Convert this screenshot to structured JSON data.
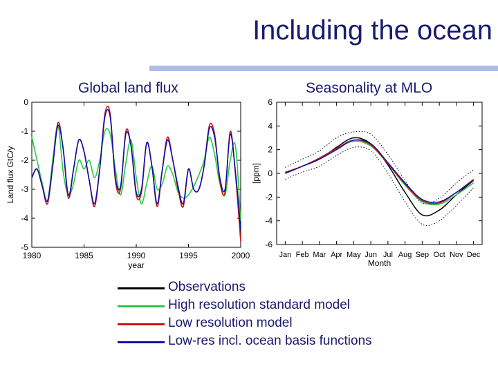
{
  "slide": {
    "title": "Including the ocean"
  },
  "colors": {
    "observations": "#000000",
    "high_res": "#22cc44",
    "low_res": "#cc1111",
    "low_res_ocean": "#1111aa",
    "title_text": "#1a1a6e",
    "accent_rule": "#aebde6"
  },
  "legend": [
    {
      "label": "Observations",
      "color_key": "observations"
    },
    {
      "label": "High resolution standard model",
      "color_key": "high_res"
    },
    {
      "label": "Low resolution model",
      "color_key": "low_res"
    },
    {
      "label": "Low-res incl. ocean basis functions",
      "color_key": "low_res_ocean"
    }
  ],
  "chart_data": [
    {
      "type": "line",
      "title": "Global land flux",
      "xlabel": "year",
      "ylabel": "Land flux GtC/y",
      "xlim": [
        1980,
        2000
      ],
      "ylim": [
        -5,
        0
      ],
      "xticks": [
        "1980",
        "1985",
        "1990",
        "1995",
        "2000"
      ],
      "yticks": [
        "0",
        "-1",
        "-2",
        "-3",
        "-4",
        "-5"
      ],
      "x": [
        1980.0,
        1980.5,
        1981.0,
        1981.5,
        1982.0,
        1982.5,
        1983.0,
        1983.5,
        1984.0,
        1984.5,
        1985.0,
        1985.5,
        1986.0,
        1986.5,
        1987.0,
        1987.5,
        1988.0,
        1988.5,
        1989.0,
        1989.5,
        1990.0,
        1990.5,
        1991.0,
        1991.5,
        1992.0,
        1992.5,
        1993.0,
        1993.5,
        1994.0,
        1994.5,
        1995.0,
        1995.5,
        1996.0,
        1996.5,
        1997.0,
        1997.5,
        1998.0,
        1998.5,
        1999.0,
        1999.5,
        2000.0
      ],
      "series": [
        {
          "name": "Low resolution model",
          "color_key": "low_res",
          "values": [
            -2.6,
            -2.3,
            -2.9,
            -3.5,
            -2.2,
            -0.7,
            -1.6,
            -3.3,
            -2.3,
            -1.3,
            -1.7,
            -2.7,
            -3.6,
            -2.3,
            -0.4,
            -0.4,
            -2.7,
            -3.0,
            -1.0,
            -1.5,
            -3.2,
            -3.1,
            -1.4,
            -2.2,
            -3.6,
            -2.3,
            -1.2,
            -2.0,
            -3.0,
            -3.6,
            -2.3,
            -3.0,
            -3.0,
            -2.2,
            -0.8,
            -1.1,
            -2.7,
            -3.1,
            -1.0,
            -2.5,
            -4.8
          ]
        },
        {
          "name": "Low-res incl. ocean basis functions",
          "color_key": "low_res_ocean",
          "values": [
            -2.6,
            -2.3,
            -2.9,
            -3.4,
            -2.2,
            -0.8,
            -1.6,
            -3.2,
            -2.3,
            -1.3,
            -1.7,
            -2.7,
            -3.5,
            -2.3,
            -0.5,
            -0.5,
            -2.6,
            -2.9,
            -1.1,
            -1.5,
            -3.1,
            -3.0,
            -1.4,
            -2.2,
            -3.5,
            -2.3,
            -1.3,
            -2.0,
            -2.9,
            -3.5,
            -2.3,
            -3.0,
            -3.0,
            -2.2,
            -0.9,
            -1.2,
            -2.6,
            -3.0,
            -1.1,
            -2.4,
            -4.4
          ]
        },
        {
          "name": "High resolution standard model",
          "color_key": "high_res",
          "values": [
            -1.2,
            -2.0,
            -2.8,
            -3.4,
            -2.0,
            -0.8,
            -2.4,
            -3.2,
            -2.8,
            -2.0,
            -2.3,
            -2.0,
            -2.6,
            -2.0,
            -1.0,
            -1.1,
            -2.3,
            -3.2,
            -2.1,
            -1.3,
            -2.6,
            -3.5,
            -2.8,
            -2.2,
            -3.0,
            -2.8,
            -2.2,
            -2.5,
            -3.1,
            -3.3,
            -3.2,
            -2.9,
            -2.5,
            -2.0,
            -1.2,
            -1.8,
            -2.8,
            -3.2,
            -2.0,
            -1.5,
            -4.1
          ]
        }
      ]
    },
    {
      "type": "line",
      "title": "Seasonality at MLO",
      "xlabel": "Month",
      "ylabel": "[ppm]",
      "ylim": [
        -6,
        6
      ],
      "categories": [
        "Jan",
        "Feb",
        "Mar",
        "Apr",
        "May",
        "Jun",
        "Jul",
        "Aug",
        "Sep",
        "Oct",
        "Nov",
        "Dec"
      ],
      "yticks": [
        "6",
        "4",
        "2",
        "0",
        "-2",
        "-4",
        "-6"
      ],
      "series": [
        {
          "name": "Observations",
          "color_key": "observations",
          "values": [
            0.0,
            0.6,
            1.2,
            2.2,
            3.0,
            2.5,
            0.7,
            -1.6,
            -3.5,
            -3.1,
            -1.8,
            -0.6
          ]
        },
        {
          "name": "High resolution standard model",
          "color_key": "high_res",
          "values": [
            0.1,
            0.6,
            1.3,
            2.1,
            2.7,
            2.3,
            0.8,
            -1.0,
            -2.4,
            -2.6,
            -1.8,
            -0.8
          ]
        },
        {
          "name": "Low resolution model",
          "color_key": "low_res",
          "values": [
            0.1,
            0.6,
            1.3,
            2.1,
            2.8,
            2.4,
            0.8,
            -0.9,
            -2.3,
            -2.5,
            -1.6,
            -0.5
          ]
        },
        {
          "name": "Low-res incl. ocean basis functions",
          "color_key": "low_res_ocean",
          "values": [
            0.0,
            0.6,
            1.2,
            2.0,
            2.8,
            2.5,
            0.9,
            -0.8,
            -2.2,
            -2.4,
            -1.6,
            -0.6
          ]
        }
      ],
      "envelope": {
        "upper": [
          0.5,
          1.2,
          1.9,
          3.0,
          3.5,
          3.3,
          1.6,
          -0.6,
          -2.5,
          -2.1,
          -0.8,
          0.3
        ],
        "lower": [
          -0.5,
          0.1,
          0.6,
          1.5,
          2.2,
          1.9,
          0.0,
          -2.4,
          -4.3,
          -4.0,
          -2.7,
          -1.2
        ]
      }
    }
  ]
}
